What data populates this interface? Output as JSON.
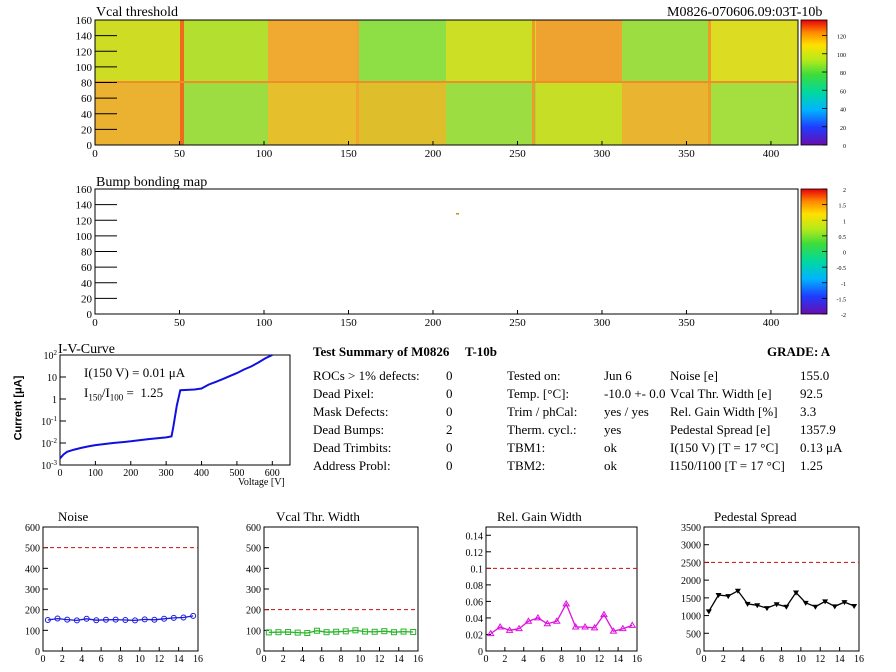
{
  "header": {
    "map_title": "Vcal threshold",
    "module_id": "M0826-070606.09:03T-10b",
    "bump_title": "Bump bonding map"
  },
  "maps": {
    "x_ticks": [
      "0",
      "50",
      "100",
      "150",
      "200",
      "250",
      "300",
      "350",
      "400"
    ],
    "y_ticks": [
      "0",
      "20",
      "40",
      "60",
      "80",
      "100",
      "120",
      "140",
      "160"
    ],
    "vcal_scale": [
      "0",
      "20",
      "40",
      "60",
      "80",
      "100",
      "120"
    ],
    "bump_scale": [
      "-2",
      "-1.5",
      "-1",
      "-0.5",
      "0",
      "0.5",
      "1",
      "1.5",
      "2"
    ]
  },
  "ivcurve": {
    "title": "I-V-Curve",
    "ylabel": "Current [μA]",
    "xlabel": "Voltage [V]",
    "x_ticks": [
      "0",
      "100",
      "200",
      "300",
      "400",
      "500",
      "600"
    ],
    "y_ticks": [
      "10-3",
      "10-2",
      "10-1",
      "1",
      "10",
      "102"
    ],
    "annot1": "I(150 V) = 0.01 μA",
    "annot2": "I150/I100 =  1.25"
  },
  "summary": {
    "title": "Test Summary of M0826",
    "label": "T-10b",
    "grade": "GRADE:  A",
    "left": [
      {
        "k": "ROCs > 1% defects:",
        "v": "0"
      },
      {
        "k": "Dead Pixel:",
        "v": "0"
      },
      {
        "k": "Mask Defects:",
        "v": "0"
      },
      {
        "k": "Dead Bumps:",
        "v": "2"
      },
      {
        "k": "Dead Trimbits:",
        "v": "0"
      },
      {
        "k": "Address Probl:",
        "v": "0"
      }
    ],
    "mid": [
      {
        "k": "Tested on:",
        "v": "Jun 6"
      },
      {
        "k": "Temp. [°C]:",
        "v": "-10.0 +- 0.0"
      },
      {
        "k": "Trim / phCal:",
        "v": "yes / yes"
      },
      {
        "k": "Therm. cycl.:",
        "v": "yes"
      },
      {
        "k": "TBM1:",
        "v": "ok"
      },
      {
        "k": "TBM2:",
        "v": "ok"
      }
    ],
    "right": [
      {
        "k": "Noise [e]",
        "v": "155.0"
      },
      {
        "k": "Vcal Thr. Width [e]",
        "v": "92.5"
      },
      {
        "k": "Rel. Gain Width [%]",
        "v": "3.3"
      },
      {
        "k": "Pedestal Spread [e]",
        "v": "1357.9"
      },
      {
        "k": "I(150 V) [T = 17 °C]",
        "v": "0.13 μA"
      },
      {
        "k": "I150/I100  [T = 17 °C]",
        "v": "1.25"
      }
    ]
  },
  "chart_data": [
    {
      "type": "line",
      "title": "I-V-Curve",
      "xlabel": "Voltage [V]",
      "ylabel": "Current [μA]",
      "log_y": true,
      "xlim": [
        0,
        650
      ],
      "ylim": [
        0.001,
        100
      ],
      "x": [
        0,
        10,
        20,
        40,
        60,
        80,
        100,
        150,
        200,
        250,
        300,
        315,
        320,
        330,
        340,
        360,
        380,
        400,
        420,
        440,
        460,
        480,
        500,
        520,
        540,
        560,
        580,
        600
      ],
      "y": [
        0.002,
        0.003,
        0.004,
        0.005,
        0.006,
        0.007,
        0.008,
        0.01,
        0.012,
        0.015,
        0.018,
        0.02,
        0.05,
        0.5,
        2.5,
        2.6,
        2.7,
        3.0,
        4.5,
        6,
        8,
        11,
        15,
        22,
        30,
        45,
        70,
        100
      ]
    },
    {
      "type": "line",
      "title": "Noise",
      "xlim": [
        0,
        16
      ],
      "ylim": [
        0,
        600
      ],
      "y_ticks": [
        "0",
        "100",
        "200",
        "300",
        "400",
        "500",
        "600"
      ],
      "x_ticks": [
        "0",
        "2",
        "4",
        "6",
        "8",
        "10",
        "12",
        "14",
        "16"
      ],
      "reference": 500,
      "x": [
        0,
        1,
        2,
        3,
        4,
        5,
        6,
        7,
        8,
        9,
        10,
        11,
        12,
        13,
        14,
        15
      ],
      "y": [
        150,
        157,
        152,
        148,
        156,
        149,
        151,
        152,
        150,
        148,
        153,
        151,
        156,
        160,
        162,
        170
      ],
      "color": "#1a1adb"
    },
    {
      "type": "line",
      "title": "Vcal Thr. Width",
      "xlim": [
        0,
        16
      ],
      "ylim": [
        0,
        600
      ],
      "y_ticks": [
        "0",
        "100",
        "200",
        "300",
        "400",
        "500",
        "600"
      ],
      "x_ticks": [
        "0",
        "2",
        "4",
        "6",
        "8",
        "10",
        "12",
        "14",
        "16"
      ],
      "reference": 200,
      "x": [
        0,
        1,
        2,
        3,
        4,
        5,
        6,
        7,
        8,
        9,
        10,
        11,
        12,
        13,
        14,
        15
      ],
      "y": [
        90,
        91,
        92,
        89,
        87,
        98,
        91,
        93,
        95,
        100,
        94,
        93,
        96,
        91,
        94,
        92
      ],
      "color": "#2ab52a"
    },
    {
      "type": "line",
      "title": "Rel. Gain Width",
      "xlim": [
        0,
        16
      ],
      "ylim": [
        0,
        0.15
      ],
      "y_ticks": [
        "0",
        "0.02",
        "0.04",
        "0.06",
        "0.08",
        "0.1",
        "0.12",
        "0.14"
      ],
      "x_ticks": [
        "0",
        "2",
        "4",
        "6",
        "8",
        "10",
        "12",
        "14",
        "16"
      ],
      "reference": 0.1,
      "x": [
        0,
        1,
        2,
        3,
        4,
        5,
        6,
        7,
        8,
        9,
        10,
        11,
        12,
        13,
        14,
        15
      ],
      "y": [
        0.021,
        0.029,
        0.025,
        0.027,
        0.036,
        0.04,
        0.033,
        0.036,
        0.057,
        0.029,
        0.029,
        0.028,
        0.044,
        0.024,
        0.027,
        0.031
      ],
      "color": "#e010e0"
    },
    {
      "type": "line",
      "title": "Pedestal Spread",
      "xlim": [
        0,
        16
      ],
      "ylim": [
        0,
        3500
      ],
      "y_ticks": [
        "0",
        "500",
        "1000",
        "1500",
        "2000",
        "2500",
        "3000",
        "3500"
      ],
      "x_ticks": [
        "0",
        "2",
        "4",
        "6",
        "8",
        "10",
        "12",
        "14",
        "16"
      ],
      "reference": 2500,
      "x": [
        0,
        1,
        2,
        3,
        4,
        5,
        6,
        7,
        8,
        9,
        10,
        11,
        12,
        13,
        14,
        15
      ],
      "y": [
        1120,
        1580,
        1550,
        1700,
        1330,
        1290,
        1210,
        1320,
        1250,
        1650,
        1360,
        1250,
        1400,
        1260,
        1380,
        1270
      ],
      "color": "#000000"
    }
  ]
}
